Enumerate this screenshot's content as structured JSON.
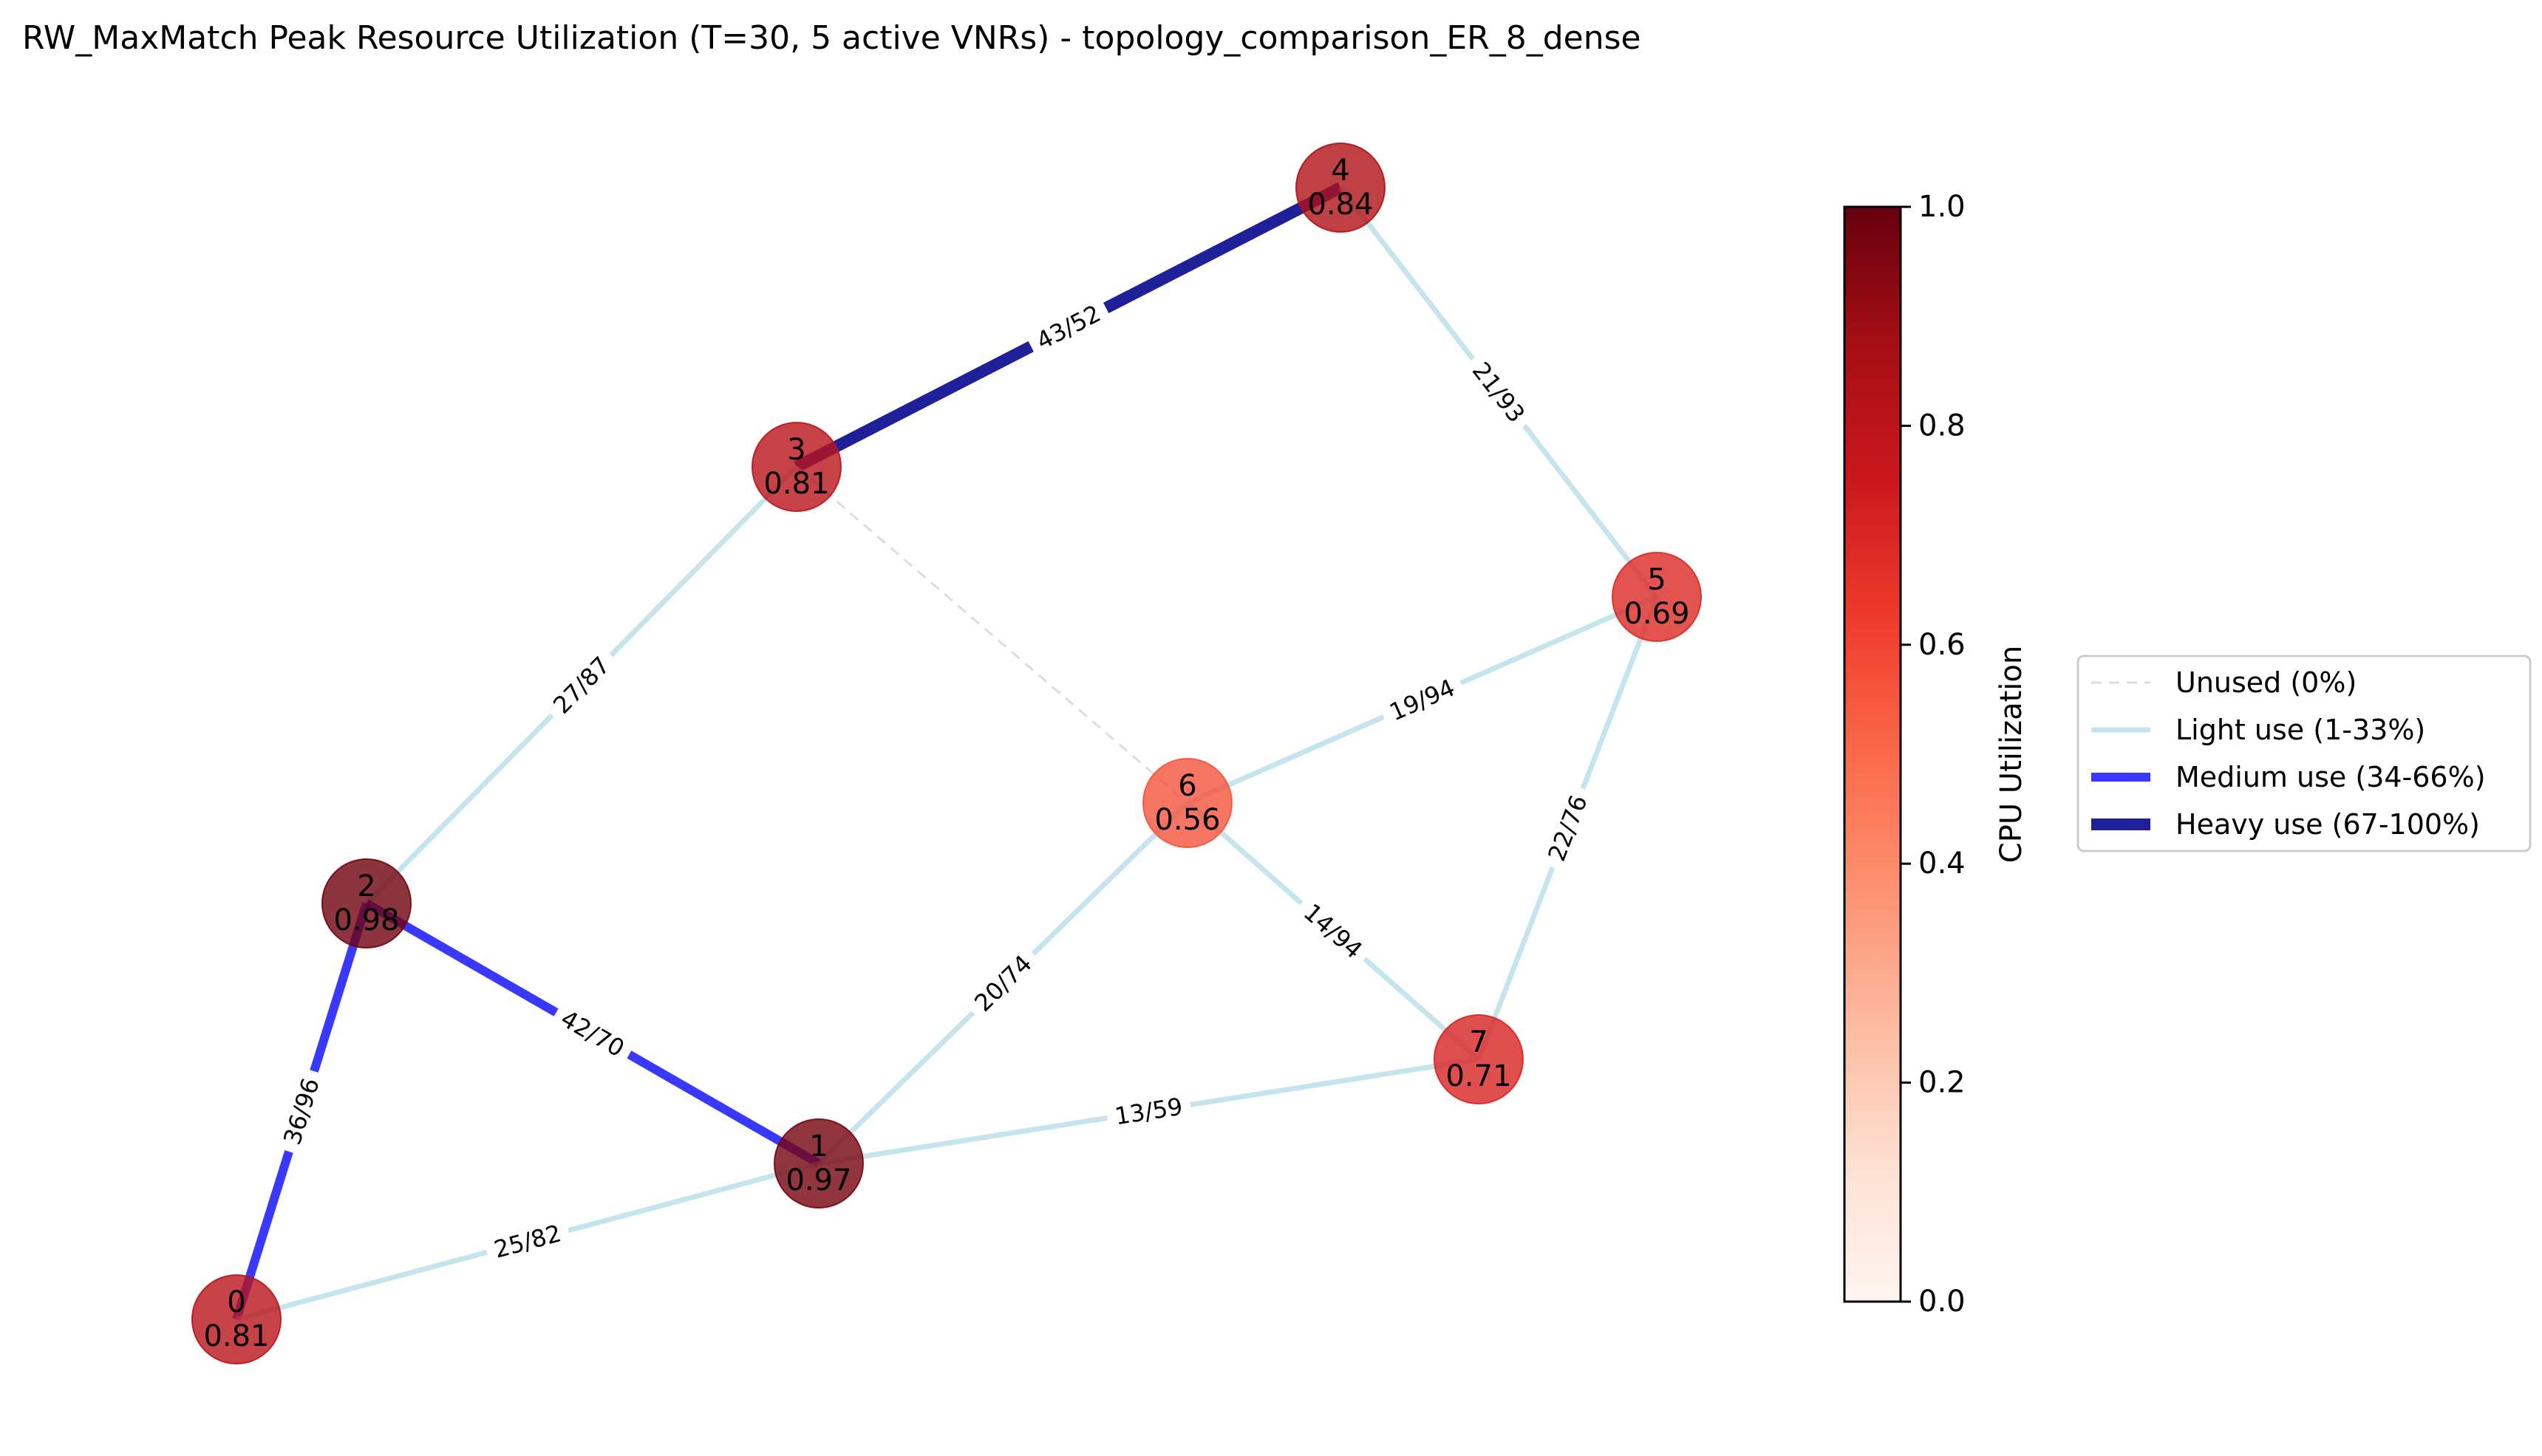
{
  "title": "RW_MaxMatch Peak Resource Utilization (T=30, 5 active VNRs) - topology_comparison_ER_8_dense",
  "nodes": [
    {
      "id": "0",
      "util": 0.81,
      "util_label": "0.81"
    },
    {
      "id": "1",
      "util": 0.97,
      "util_label": "0.97"
    },
    {
      "id": "2",
      "util": 0.98,
      "util_label": "0.98"
    },
    {
      "id": "3",
      "util": 0.81,
      "util_label": "0.81"
    },
    {
      "id": "4",
      "util": 0.84,
      "util_label": "0.84"
    },
    {
      "id": "5",
      "util": 0.69,
      "util_label": "0.69"
    },
    {
      "id": "6",
      "util": 0.56,
      "util_label": "0.56"
    },
    {
      "id": "7",
      "util": 0.71,
      "util_label": "0.71"
    }
  ],
  "edges": [
    {
      "source": "3",
      "target": "4",
      "label": "43/52",
      "usage": "heavy"
    },
    {
      "source": "4",
      "target": "5",
      "label": "21/93",
      "usage": "light"
    },
    {
      "source": "3",
      "target": "2",
      "label": "27/87",
      "usage": "light"
    },
    {
      "source": "3",
      "target": "6",
      "label": "",
      "usage": "unused"
    },
    {
      "source": "6",
      "target": "5",
      "label": "19/94",
      "usage": "light"
    },
    {
      "source": "5",
      "target": "7",
      "label": "22/76",
      "usage": "light"
    },
    {
      "source": "6",
      "target": "7",
      "label": "14/94",
      "usage": "light"
    },
    {
      "source": "6",
      "target": "1",
      "label": "20/74",
      "usage": "light"
    },
    {
      "source": "2",
      "target": "1",
      "label": "42/70",
      "usage": "medium"
    },
    {
      "source": "2",
      "target": "0",
      "label": "36/96",
      "usage": "medium"
    },
    {
      "source": "1",
      "target": "7",
      "label": "13/59",
      "usage": "light"
    },
    {
      "source": "0",
      "target": "1",
      "label": "25/82",
      "usage": "light"
    }
  ],
  "edge_styles": {
    "unused": {
      "color": "#dddddd",
      "dash": true,
      "alpha": 1.0
    },
    "light": {
      "color": "#add8e6",
      "dash": false,
      "alpha": 0.7
    },
    "medium": {
      "color": "#0000ff",
      "dash": false,
      "alpha": 0.78
    },
    "heavy": {
      "color": "#00008b",
      "dash": false,
      "alpha": 0.88
    }
  },
  "colorbar": {
    "label": "CPU Utilization",
    "colormap": "Reds",
    "min": 0.0,
    "max": 1.0,
    "ticks": [
      "0.0",
      "0.2",
      "0.4",
      "0.6",
      "0.8",
      "1.0"
    ]
  },
  "legend": {
    "items": [
      {
        "label": "Unused (0%)",
        "usage": "unused"
      },
      {
        "label": "Light use (1-33%)",
        "usage": "light"
      },
      {
        "label": "Medium use (34-66%)",
        "usage": "medium"
      },
      {
        "label": "Heavy use (67-100%)",
        "usage": "heavy"
      }
    ]
  }
}
